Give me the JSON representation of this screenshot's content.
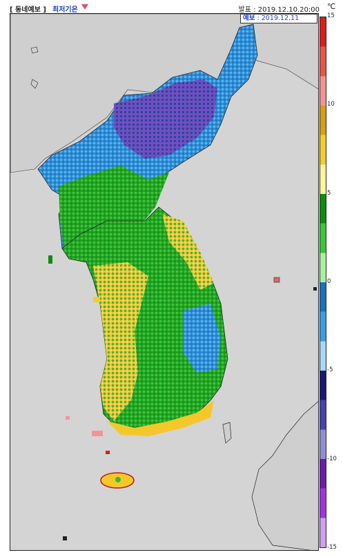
{
  "header": {
    "product": "[ 동네예보 ]",
    "variable": "최저기온",
    "issued": "발표 : 2019.12.10.20:00",
    "unit": "℃"
  },
  "forecast_label": {
    "prefix": "예보",
    "date": ": 2019.12.11"
  },
  "legend": {
    "ticks": [
      "15",
      "10",
      "5",
      "0",
      "-5",
      "-10",
      "-15"
    ],
    "colors": [
      "#d7201e",
      "#e4564b",
      "#f29591",
      "#d4a017",
      "#f5cc2e",
      "#fff59a",
      "#118a11",
      "#3cc43c",
      "#a8f0a0",
      "#1a72b8",
      "#3a9de0",
      "#a6d8f5",
      "#1a1a70",
      "#4545a8",
      "#8f8fd0",
      "#6a1ea8",
      "#9d35e0",
      "#cfa1f0"
    ]
  },
  "map": {
    "sea_color": "#d4d4d4",
    "land_color": "#c7c7c7"
  }
}
